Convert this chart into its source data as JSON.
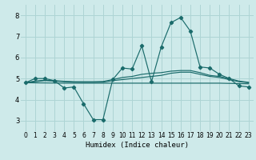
{
  "xlabel": "Humidex (Indice chaleur)",
  "bg_color": "#ceeaea",
  "grid_color": "#aed4d4",
  "line_color": "#1a6b6b",
  "xlim": [
    -0.5,
    23.5
  ],
  "ylim": [
    2.5,
    8.5
  ],
  "yticks": [
    3,
    4,
    5,
    6,
    7,
    8
  ],
  "xticks": [
    0,
    1,
    2,
    3,
    4,
    5,
    6,
    7,
    8,
    9,
    10,
    11,
    12,
    13,
    14,
    15,
    16,
    17,
    18,
    19,
    20,
    21,
    22,
    23
  ],
  "series1_x": [
    0,
    1,
    2,
    3,
    4,
    5,
    6,
    7,
    8,
    9,
    10,
    11,
    12,
    13,
    14,
    15,
    16,
    17,
    18,
    19,
    20,
    21,
    22,
    23
  ],
  "series1_y": [
    4.8,
    5.0,
    5.0,
    4.9,
    4.55,
    4.6,
    3.8,
    3.05,
    3.05,
    4.95,
    5.5,
    5.45,
    6.55,
    4.85,
    6.5,
    7.65,
    7.9,
    7.25,
    5.55,
    5.5,
    5.2,
    5.0,
    4.65,
    4.6
  ],
  "series2_x": [
    0,
    1,
    2,
    3,
    4,
    5,
    6,
    7,
    8,
    9,
    10,
    11,
    12,
    13,
    14,
    15,
    16,
    17,
    18,
    19,
    20,
    21,
    22,
    23
  ],
  "series2_y": [
    4.8,
    4.85,
    4.9,
    4.88,
    4.85,
    4.83,
    4.82,
    4.82,
    4.83,
    4.9,
    4.95,
    5.0,
    5.05,
    5.1,
    5.15,
    5.25,
    5.3,
    5.3,
    5.2,
    5.1,
    5.05,
    4.95,
    4.85,
    4.8
  ],
  "series3_x": [
    0,
    1,
    2,
    3,
    4,
    5,
    6,
    7,
    8,
    9,
    10,
    11,
    12,
    13,
    14,
    15,
    16,
    17,
    18,
    19,
    20,
    21,
    22,
    23
  ],
  "series3_y": [
    4.8,
    4.88,
    4.92,
    4.9,
    4.87,
    4.85,
    4.85,
    4.85,
    4.86,
    4.95,
    5.05,
    5.1,
    5.2,
    5.25,
    5.28,
    5.35,
    5.38,
    5.38,
    5.28,
    5.15,
    5.1,
    5.0,
    4.88,
    4.82
  ],
  "series4_x": [
    0,
    4,
    8,
    12,
    16,
    20,
    23
  ],
  "series4_y": [
    4.8,
    4.78,
    4.78,
    4.78,
    4.78,
    4.78,
    4.75
  ]
}
